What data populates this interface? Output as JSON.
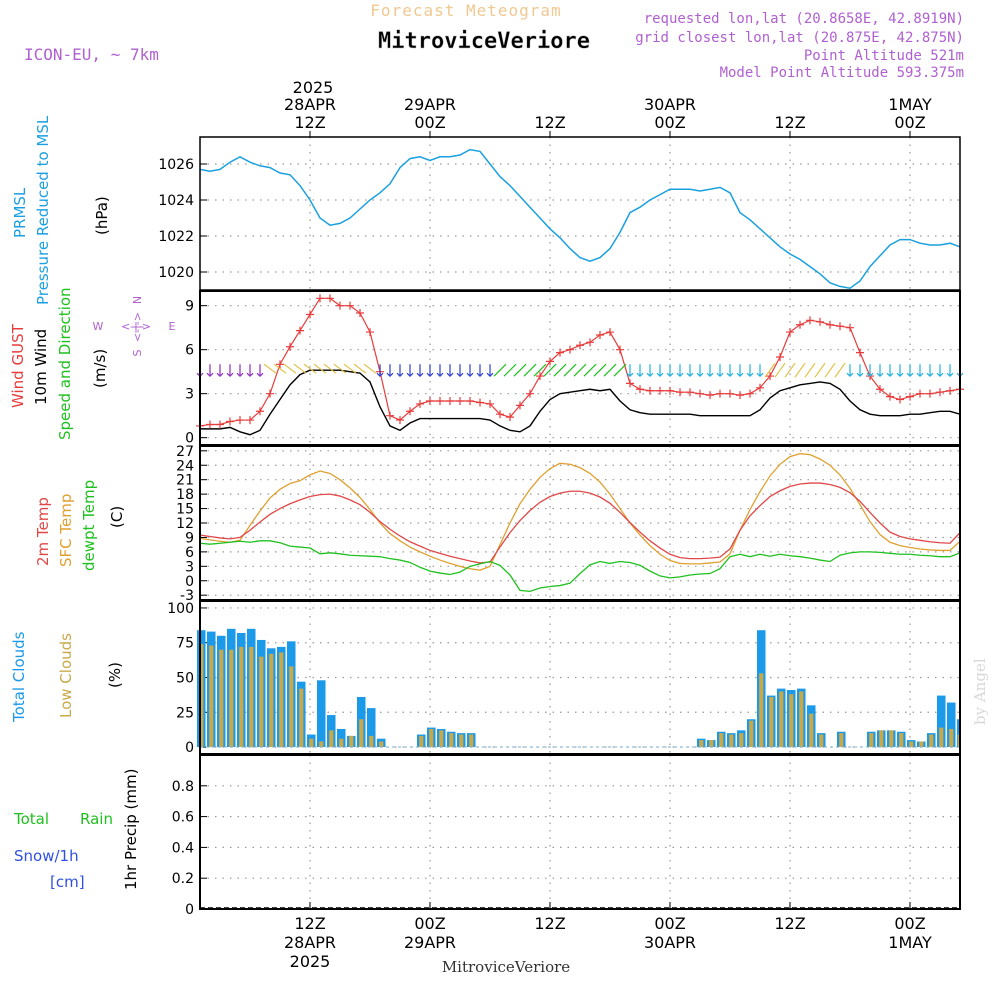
{
  "header": {
    "product": "Forecast Meteogram",
    "location": "MitroviceVeriore",
    "model": "ICON-EU, ~ 7km",
    "requested": "requested lon,lat (20.8658E, 42.8919N)",
    "closest": "grid closest lon,lat (20.875E, 42.875N)",
    "point_altitude": "Point Altitude 521m",
    "model_altitude": "Model Point Altitude 593.375m",
    "footer_location": "MitroviceVeriore",
    "credit": "by Angel"
  },
  "time_axis": {
    "top_year": "2025",
    "ticks": [
      {
        "t": 12,
        "top": "28APR",
        "hour": "12Z"
      },
      {
        "t": 24,
        "top": "29APR",
        "hour": "00Z"
      },
      {
        "t": 36,
        "top": "",
        "hour": "12Z"
      },
      {
        "t": 48,
        "top": "30APR",
        "hour": "00Z"
      },
      {
        "t": 60,
        "top": "",
        "hour": "12Z"
      },
      {
        "t": 72,
        "top": "1MAY",
        "hour": "00Z"
      }
    ],
    "bottom_ticks": [
      {
        "t": 12,
        "hour": "12Z",
        "date": "28APR",
        "year": "2025"
      },
      {
        "t": 24,
        "hour": "00Z",
        "date": "29APR",
        "year": ""
      },
      {
        "t": 36,
        "hour": "12Z",
        "date": "",
        "year": ""
      },
      {
        "t": 48,
        "hour": "00Z",
        "date": "30APR",
        "year": ""
      },
      {
        "t": 60,
        "hour": "12Z",
        "date": "",
        "year": ""
      },
      {
        "t": 72,
        "hour": "00Z",
        "date": "1MAY",
        "year": ""
      }
    ],
    "start_hour": 1,
    "end_hour": 77
  },
  "labels": {
    "prmsl": "PRMSL",
    "prmsl_desc": "Pressure Reduced to MSL",
    "prmsl_unit": "(hPa)",
    "gust": "Wind GUST",
    "wind10": "10m Wind",
    "wind_dir": "Speed and Direction",
    "wind_unit": "(m/s)",
    "compass_n": "N",
    "compass_s": "S",
    "compass_w": "W",
    "compass_e": "E",
    "t2m": "2m Temp",
    "sfc": "SFC Temp",
    "dewpt": "dewpt Temp",
    "temp_unit": "(C)",
    "total_clouds": "Total Clouds",
    "low_clouds": "Low Clouds",
    "cloud_unit": "(%)",
    "rain_total": "Total",
    "rain_word": "Rain",
    "snow": "Snow/1h",
    "snow_unit": "[cm]",
    "precip": "1hr Precip (mm)"
  },
  "colors": {
    "pressure": "#1aa0e0",
    "gust": "#e83c3c",
    "wind": "#000000",
    "t2m": "#e04848",
    "sfc": "#e0a030",
    "dewpt": "#20c020",
    "total_clouds": "#1a9ae8",
    "low_clouds": "#c8a848",
    "purple": "#b060d0",
    "rain": "#20c020",
    "snow": "#3050e0",
    "title_orange": "#f0c890"
  },
  "chart_data": [
    {
      "type": "line",
      "name": "pressure",
      "ylim": [
        1019,
        1027.5
      ],
      "yticks": [
        1020,
        1022,
        1024,
        1026
      ],
      "x": [
        1,
        2,
        3,
        4,
        5,
        6,
        7,
        8,
        9,
        10,
        11,
        12,
        13,
        14,
        15,
        16,
        17,
        18,
        19,
        20,
        21,
        22,
        23,
        24,
        25,
        26,
        27,
        28,
        29,
        30,
        31,
        32,
        33,
        34,
        35,
        36,
        37,
        38,
        39,
        40,
        41,
        42,
        43,
        44,
        45,
        46,
        47,
        48,
        49,
        50,
        51,
        52,
        53,
        54,
        55,
        56,
        57,
        58,
        59,
        60,
        61,
        62,
        63,
        64,
        65,
        66,
        67,
        68,
        69,
        70,
        71,
        72,
        73,
        74,
        75,
        76,
        77
      ],
      "y": [
        1025.7,
        1025.6,
        1025.7,
        1026.1,
        1026.4,
        1026.1,
        1025.9,
        1025.8,
        1025.5,
        1025.4,
        1024.8,
        1024.0,
        1023.0,
        1022.6,
        1022.7,
        1023.0,
        1023.5,
        1024.0,
        1024.4,
        1024.9,
        1025.8,
        1026.3,
        1026.4,
        1026.2,
        1026.4,
        1026.4,
        1026.5,
        1026.8,
        1026.7,
        1026.0,
        1025.3,
        1024.8,
        1024.2,
        1023.6,
        1023.0,
        1022.4,
        1021.9,
        1021.3,
        1020.8,
        1020.6,
        1020.8,
        1021.3,
        1022.2,
        1023.3,
        1023.6,
        1024.0,
        1024.3,
        1024.6,
        1024.6,
        1024.6,
        1024.5,
        1024.6,
        1024.7,
        1024.4,
        1023.3,
        1022.9,
        1022.4,
        1021.9,
        1021.4,
        1021.0,
        1020.7,
        1020.3,
        1019.9,
        1019.4,
        1019.2,
        1019.1,
        1019.5,
        1020.3,
        1020.9,
        1021.5,
        1021.8,
        1021.8,
        1021.6,
        1021.5,
        1021.5,
        1021.6,
        1021.4
      ]
    },
    {
      "type": "line",
      "name": "wind",
      "ylim": [
        -0.5,
        10
      ],
      "yticks": [
        0,
        3,
        6,
        9
      ],
      "x": [
        1,
        2,
        3,
        4,
        5,
        6,
        7,
        8,
        9,
        10,
        11,
        12,
        13,
        14,
        15,
        16,
        17,
        18,
        19,
        20,
        21,
        22,
        23,
        24,
        25,
        26,
        27,
        28,
        29,
        30,
        31,
        32,
        33,
        34,
        35,
        36,
        37,
        38,
        39,
        40,
        41,
        42,
        43,
        44,
        45,
        46,
        47,
        48,
        49,
        50,
        51,
        52,
        53,
        54,
        55,
        56,
        57,
        58,
        59,
        60,
        61,
        62,
        63,
        64,
        65,
        66,
        67,
        68,
        69,
        70,
        71,
        72,
        73,
        74,
        75,
        76,
        77
      ],
      "series": [
        {
          "name": "Wind GUST",
          "y": [
            0.8,
            0.9,
            0.9,
            1.1,
            1.2,
            1.2,
            1.8,
            3.0,
            5.0,
            6.2,
            7.3,
            8.4,
            9.5,
            9.5,
            9.0,
            9.0,
            8.5,
            7.2,
            4.5,
            1.5,
            1.2,
            1.8,
            2.3,
            2.5,
            2.5,
            2.5,
            2.5,
            2.5,
            2.4,
            2.3,
            1.6,
            1.4,
            2.2,
            3.0,
            4.2,
            5.2,
            5.8,
            6.0,
            6.3,
            6.5,
            7.0,
            7.2,
            6.0,
            3.7,
            3.3,
            3.2,
            3.2,
            3.2,
            3.1,
            3.1,
            3.0,
            2.9,
            3.0,
            3.0,
            2.9,
            3.0,
            3.4,
            4.2,
            5.5,
            7.2,
            7.7,
            8.0,
            7.9,
            7.7,
            7.6,
            7.5,
            5.8,
            4.2,
            3.3,
            2.8,
            2.6,
            2.8,
            3.0,
            3.0,
            3.1,
            3.2,
            3.3
          ]
        },
        {
          "name": "10m Wind",
          "y": [
            0.6,
            0.6,
            0.6,
            0.7,
            0.4,
            0.2,
            0.5,
            1.6,
            2.6,
            3.6,
            4.3,
            4.6,
            4.6,
            4.6,
            4.6,
            4.5,
            4.4,
            3.8,
            2.1,
            0.8,
            0.5,
            1.0,
            1.3,
            1.3,
            1.3,
            1.3,
            1.3,
            1.3,
            1.3,
            1.2,
            0.8,
            0.5,
            0.4,
            0.8,
            1.8,
            2.6,
            3.0,
            3.1,
            3.2,
            3.3,
            3.2,
            3.3,
            2.5,
            1.9,
            1.7,
            1.6,
            1.6,
            1.6,
            1.6,
            1.6,
            1.5,
            1.5,
            1.5,
            1.5,
            1.5,
            1.5,
            1.9,
            2.7,
            3.2,
            3.4,
            3.6,
            3.7,
            3.8,
            3.7,
            3.3,
            2.5,
            1.9,
            1.6,
            1.5,
            1.5,
            1.5,
            1.6,
            1.6,
            1.7,
            1.8,
            1.8,
            1.6
          ]
        }
      ]
    },
    {
      "type": "line",
      "name": "temperature",
      "ylim": [
        -4,
        28
      ],
      "yticks": [
        -3,
        0,
        3,
        6,
        9,
        12,
        15,
        18,
        21,
        24,
        27
      ],
      "x": [
        1,
        2,
        3,
        4,
        5,
        6,
        7,
        8,
        9,
        10,
        11,
        12,
        13,
        14,
        15,
        16,
        17,
        18,
        19,
        20,
        21,
        22,
        23,
        24,
        25,
        26,
        27,
        28,
        29,
        30,
        31,
        32,
        33,
        34,
        35,
        36,
        37,
        38,
        39,
        40,
        41,
        42,
        43,
        44,
        45,
        46,
        47,
        48,
        49,
        50,
        51,
        52,
        53,
        54,
        55,
        56,
        57,
        58,
        59,
        60,
        61,
        62,
        63,
        64,
        65,
        66,
        67,
        68,
        69,
        70,
        71,
        72,
        73,
        74,
        75,
        76,
        77
      ],
      "series": [
        {
          "name": "2m Temp",
          "y": [
            9.5,
            9.2,
            8.9,
            8.7,
            9.0,
            10.5,
            12.2,
            13.8,
            15.0,
            16.0,
            16.8,
            17.5,
            17.9,
            18.0,
            17.6,
            16.8,
            15.8,
            14.2,
            12.3,
            10.7,
            9.3,
            8.1,
            7.2,
            6.3,
            5.7,
            5.1,
            4.6,
            4.1,
            3.7,
            3.9,
            7.0,
            10.0,
            12.5,
            14.6,
            16.3,
            17.5,
            18.2,
            18.6,
            18.6,
            18.2,
            17.4,
            16.1,
            14.2,
            12.1,
            10.1,
            8.3,
            6.8,
            5.5,
            4.8,
            4.6,
            4.6,
            4.7,
            4.9,
            6.6,
            10.5,
            13.5,
            15.6,
            17.5,
            18.7,
            19.6,
            20.1,
            20.3,
            20.3,
            20.0,
            19.4,
            18.3,
            16.5,
            14.2,
            12.0,
            10.1,
            9.2,
            8.7,
            8.4,
            8.1,
            7.9,
            7.8,
            10.0
          ]
        },
        {
          "name": "SFC Temp",
          "y": [
            8.8,
            8.5,
            8.2,
            8.0,
            8.4,
            11.5,
            14.5,
            17.2,
            19.0,
            20.2,
            20.8,
            22.0,
            22.8,
            22.3,
            21.0,
            19.3,
            17.3,
            14.8,
            12.0,
            9.8,
            8.3,
            7.0,
            6.0,
            5.1,
            4.3,
            3.6,
            3.0,
            2.5,
            2.2,
            3.0,
            7.5,
            12.0,
            16.0,
            19.0,
            21.5,
            23.3,
            24.4,
            24.2,
            23.5,
            22.3,
            20.5,
            18.0,
            15.0,
            12.0,
            9.5,
            7.3,
            5.5,
            4.2,
            3.6,
            3.5,
            3.5,
            3.7,
            3.9,
            5.6,
            10.5,
            14.8,
            18.5,
            21.8,
            24.2,
            25.8,
            26.4,
            26.2,
            25.3,
            24.0,
            22.0,
            19.2,
            15.8,
            12.3,
            9.6,
            8.0,
            7.3,
            6.9,
            6.6,
            6.4,
            6.3,
            6.3,
            8.2
          ]
        },
        {
          "name": "dewpt Temp",
          "y": [
            7.8,
            7.6,
            7.8,
            8.0,
            8.2,
            8.0,
            8.3,
            8.3,
            7.9,
            7.2,
            7.0,
            6.8,
            5.6,
            5.8,
            5.6,
            5.3,
            5.2,
            5.1,
            5.0,
            4.6,
            4.3,
            3.8,
            2.8,
            2.0,
            1.6,
            1.3,
            1.8,
            3.0,
            3.5,
            4.0,
            3.2,
            1.2,
            -2.0,
            -2.2,
            -1.5,
            -1.2,
            -1.0,
            -0.5,
            1.5,
            3.3,
            4.0,
            3.6,
            4.0,
            3.8,
            3.2,
            2.0,
            1.0,
            0.6,
            0.8,
            1.2,
            1.4,
            1.5,
            2.5,
            5.0,
            5.5,
            5.0,
            5.5,
            5.1,
            5.5,
            5.2,
            5.0,
            4.7,
            4.3,
            4.0,
            5.3,
            5.8,
            6.0,
            6.0,
            5.9,
            5.7,
            5.5,
            5.5,
            5.3,
            5.2,
            5.0,
            5.0,
            5.8
          ]
        }
      ]
    },
    {
      "type": "bar",
      "name": "clouds",
      "ylim": [
        -5,
        105
      ],
      "yticks": [
        0,
        25,
        50,
        75,
        100
      ],
      "x": [
        1,
        2,
        3,
        4,
        5,
        6,
        7,
        8,
        9,
        10,
        11,
        12,
        13,
        14,
        15,
        16,
        17,
        18,
        19,
        20,
        21,
        22,
        23,
        24,
        25,
        26,
        27,
        28,
        29,
        30,
        31,
        32,
        33,
        34,
        35,
        36,
        37,
        38,
        39,
        40,
        41,
        42,
        43,
        44,
        45,
        46,
        47,
        48,
        49,
        50,
        51,
        52,
        53,
        54,
        55,
        56,
        57,
        58,
        59,
        60,
        61,
        62,
        63,
        64,
        65,
        66,
        67,
        68,
        69,
        70,
        71,
        72,
        73,
        74,
        75,
        76,
        77
      ],
      "series": [
        {
          "name": "Total Clouds",
          "values": [
            84,
            83,
            80,
            85,
            82,
            85,
            77,
            71,
            72,
            76,
            47,
            9,
            48,
            23,
            13,
            8,
            36,
            28,
            6,
            0,
            0,
            0,
            9,
            14,
            13,
            11,
            10,
            10,
            0,
            0,
            0,
            0,
            0,
            0,
            0,
            0,
            0,
            0,
            0,
            0,
            0,
            0,
            0,
            0,
            0,
            0,
            0,
            0,
            0,
            0,
            6,
            5,
            11,
            10,
            12,
            20,
            84,
            37,
            42,
            41,
            42,
            30,
            10,
            0,
            11,
            0,
            0,
            11,
            12,
            12,
            11,
            5,
            4,
            10,
            37,
            32,
            20
          ]
        },
        {
          "name": "Low Clouds",
          "values": [
            74,
            73,
            70,
            70,
            72,
            72,
            65,
            67,
            68,
            58,
            42,
            6,
            4,
            12,
            6,
            8,
            20,
            8,
            4,
            0,
            0,
            0,
            8,
            13,
            12,
            10,
            9,
            9,
            0,
            0,
            0,
            0,
            0,
            0,
            0,
            0,
            0,
            0,
            0,
            0,
            0,
            0,
            0,
            0,
            0,
            0,
            0,
            0,
            0,
            0,
            5,
            5,
            10,
            9,
            10,
            19,
            53,
            36,
            40,
            38,
            40,
            24,
            9,
            0,
            10,
            0,
            0,
            10,
            12,
            12,
            10,
            4,
            4,
            9,
            14,
            13,
            9
          ]
        }
      ]
    },
    {
      "type": "bar",
      "name": "precip",
      "ylim": [
        0,
        1
      ],
      "yticks": [
        0,
        0.2,
        0.4,
        0.6,
        0.8
      ],
      "values": []
    }
  ]
}
